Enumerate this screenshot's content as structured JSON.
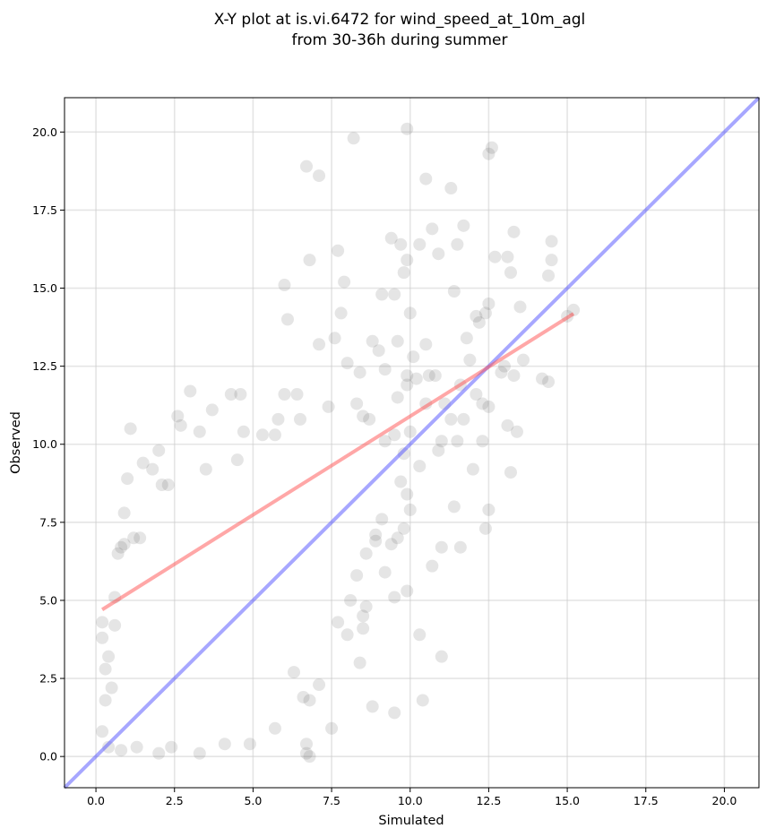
{
  "chart_data": {
    "type": "scatter",
    "title": "X-Y plot at is.vi.6472 for wind_speed_at_10m_agl",
    "subtitle": "from 30-36h during summer",
    "xlabel": "Simulated",
    "ylabel": "Observed",
    "xlim": [
      -1.0,
      21.1
    ],
    "ylim": [
      -1.0,
      21.1
    ],
    "xticks": [
      0.0,
      2.5,
      5.0,
      7.5,
      10.0,
      12.5,
      15.0,
      17.5,
      20.0
    ],
    "yticks": [
      0.0,
      2.5,
      5.0,
      7.5,
      10.0,
      12.5,
      15.0,
      17.5,
      20.0
    ],
    "xtick_labels": [
      "0.0",
      "2.5",
      "5.0",
      "7.5",
      "10.0",
      "12.5",
      "15.0",
      "17.5",
      "20.0"
    ],
    "ytick_labels": [
      "0.0",
      "2.5",
      "5.0",
      "7.5",
      "10.0",
      "12.5",
      "15.0",
      "17.5",
      "20.0"
    ],
    "grid": true,
    "colors": {
      "points": "#333333",
      "fit_line": "#ff5050",
      "identity_line": "#5050ff",
      "grid": "#cccccc"
    },
    "points": [
      [
        0.2,
        0.8
      ],
      [
        0.2,
        3.8
      ],
      [
        0.2,
        4.3
      ],
      [
        0.3,
        2.8
      ],
      [
        0.3,
        1.8
      ],
      [
        0.4,
        3.2
      ],
      [
        0.5,
        2.2
      ],
      [
        0.6,
        5.1
      ],
      [
        0.6,
        4.2
      ],
      [
        0.7,
        6.5
      ],
      [
        0.8,
        6.7
      ],
      [
        0.9,
        6.8
      ],
      [
        0.9,
        7.8
      ],
      [
        1.0,
        8.9
      ],
      [
        1.1,
        10.5
      ],
      [
        1.2,
        7.0
      ],
      [
        1.4,
        7.0
      ],
      [
        1.5,
        9.4
      ],
      [
        1.8,
        9.2
      ],
      [
        2.0,
        9.8
      ],
      [
        2.1,
        8.7
      ],
      [
        2.3,
        8.7
      ],
      [
        2.6,
        10.9
      ],
      [
        2.7,
        10.6
      ],
      [
        3.0,
        11.7
      ],
      [
        3.3,
        10.4
      ],
      [
        3.5,
        9.2
      ],
      [
        3.7,
        11.1
      ],
      [
        4.3,
        11.6
      ],
      [
        4.5,
        9.5
      ],
      [
        4.6,
        11.6
      ],
      [
        4.7,
        10.4
      ],
      [
        5.3,
        10.3
      ],
      [
        5.7,
        10.3
      ],
      [
        5.8,
        10.8
      ],
      [
        6.0,
        11.6
      ],
      [
        6.0,
        15.1
      ],
      [
        6.1,
        14.0
      ],
      [
        6.4,
        11.6
      ],
      [
        6.5,
        10.8
      ],
      [
        6.7,
        18.9
      ],
      [
        6.8,
        15.9
      ],
      [
        7.1,
        18.6
      ],
      [
        7.1,
        13.2
      ],
      [
        7.4,
        11.2
      ],
      [
        7.6,
        13.4
      ],
      [
        7.7,
        16.2
      ],
      [
        7.8,
        14.2
      ],
      [
        7.9,
        15.2
      ],
      [
        8.0,
        12.6
      ],
      [
        8.2,
        19.8
      ],
      [
        8.3,
        11.3
      ],
      [
        8.4,
        12.3
      ],
      [
        8.5,
        10.9
      ],
      [
        8.7,
        10.8
      ],
      [
        8.8,
        13.3
      ],
      [
        9.0,
        13.0
      ],
      [
        9.1,
        14.8
      ],
      [
        9.2,
        12.4
      ],
      [
        9.4,
        16.6
      ],
      [
        9.5,
        14.8
      ],
      [
        9.6,
        13.3
      ],
      [
        9.7,
        16.4
      ],
      [
        9.8,
        15.5
      ],
      [
        9.9,
        20.1
      ],
      [
        9.9,
        15.9
      ],
      [
        10.0,
        14.2
      ],
      [
        10.1,
        12.8
      ],
      [
        10.3,
        16.4
      ],
      [
        10.5,
        18.5
      ],
      [
        10.6,
        12.2
      ],
      [
        10.7,
        16.9
      ],
      [
        10.8,
        12.2
      ],
      [
        10.9,
        16.1
      ],
      [
        11.3,
        18.2
      ],
      [
        11.4,
        14.9
      ],
      [
        11.5,
        16.4
      ],
      [
        11.7,
        17.0
      ],
      [
        11.8,
        13.4
      ],
      [
        11.9,
        12.7
      ],
      [
        12.1,
        14.1
      ],
      [
        12.2,
        13.9
      ],
      [
        12.4,
        14.2
      ],
      [
        12.5,
        14.5
      ],
      [
        12.5,
        19.3
      ],
      [
        12.6,
        19.5
      ],
      [
        12.7,
        16.0
      ],
      [
        12.9,
        12.3
      ],
      [
        13.1,
        16.0
      ],
      [
        13.2,
        15.5
      ],
      [
        13.3,
        16.8
      ],
      [
        13.5,
        14.4
      ],
      [
        13.6,
        12.7
      ],
      [
        14.2,
        12.1
      ],
      [
        14.4,
        15.4
      ],
      [
        14.5,
        15.9
      ],
      [
        14.5,
        16.5
      ],
      [
        15.0,
        14.1
      ],
      [
        15.2,
        14.3
      ],
      [
        14.4,
        12.0
      ],
      [
        13.3,
        12.2
      ],
      [
        13.0,
        12.5
      ],
      [
        12.3,
        11.3
      ],
      [
        12.1,
        11.6
      ],
      [
        11.6,
        11.9
      ],
      [
        11.1,
        11.3
      ],
      [
        11.0,
        10.1
      ],
      [
        11.3,
        10.8
      ],
      [
        12.3,
        10.1
      ],
      [
        12.5,
        11.2
      ],
      [
        13.1,
        10.6
      ],
      [
        13.4,
        10.4
      ],
      [
        13.2,
        9.1
      ],
      [
        12.0,
        9.2
      ],
      [
        11.7,
        10.8
      ],
      [
        10.9,
        9.8
      ],
      [
        10.3,
        9.3
      ],
      [
        11.4,
        8.0
      ],
      [
        12.5,
        7.9
      ],
      [
        12.4,
        7.3
      ],
      [
        11.6,
        6.7
      ],
      [
        11.0,
        6.7
      ],
      [
        10.7,
        6.1
      ],
      [
        10.3,
        3.9
      ],
      [
        11.0,
        3.2
      ],
      [
        10.4,
        1.8
      ],
      [
        9.5,
        1.4
      ],
      [
        8.8,
        1.6
      ],
      [
        9.5,
        5.1
      ],
      [
        9.9,
        5.3
      ],
      [
        9.2,
        5.9
      ],
      [
        8.5,
        4.1
      ],
      [
        8.0,
        3.9
      ],
      [
        8.4,
        3.0
      ],
      [
        7.7,
        4.3
      ],
      [
        7.5,
        0.9
      ],
      [
        7.1,
        2.3
      ],
      [
        6.7,
        0.4
      ],
      [
        6.7,
        0.1
      ],
      [
        6.8,
        0.0
      ],
      [
        6.6,
        1.9
      ],
      [
        6.8,
        1.8
      ],
      [
        6.3,
        2.7
      ],
      [
        5.7,
        0.9
      ],
      [
        4.9,
        0.4
      ],
      [
        4.1,
        0.4
      ],
      [
        3.3,
        0.1
      ],
      [
        2.4,
        0.3
      ],
      [
        2.0,
        0.1
      ],
      [
        1.3,
        0.3
      ],
      [
        0.8,
        0.2
      ],
      [
        0.4,
        0.3
      ],
      [
        9.9,
        8.4
      ],
      [
        10.0,
        7.9
      ],
      [
        9.8,
        7.3
      ],
      [
        9.6,
        7.0
      ],
      [
        9.4,
        6.8
      ],
      [
        9.1,
        7.6
      ],
      [
        8.9,
        7.1
      ],
      [
        8.6,
        6.5
      ],
      [
        8.3,
        5.8
      ],
      [
        8.1,
        5.0
      ],
      [
        8.6,
        4.8
      ],
      [
        8.5,
        4.5
      ],
      [
        8.9,
        6.9
      ],
      [
        9.7,
        8.8
      ],
      [
        9.8,
        9.7
      ],
      [
        9.2,
        10.1
      ],
      [
        9.5,
        10.3
      ],
      [
        10.0,
        10.4
      ],
      [
        9.6,
        11.5
      ],
      [
        9.9,
        11.9
      ],
      [
        10.5,
        11.3
      ],
      [
        10.2,
        12.1
      ],
      [
        9.9,
        12.2
      ],
      [
        10.5,
        13.2
      ],
      [
        11.5,
        10.1
      ]
    ]
  }
}
